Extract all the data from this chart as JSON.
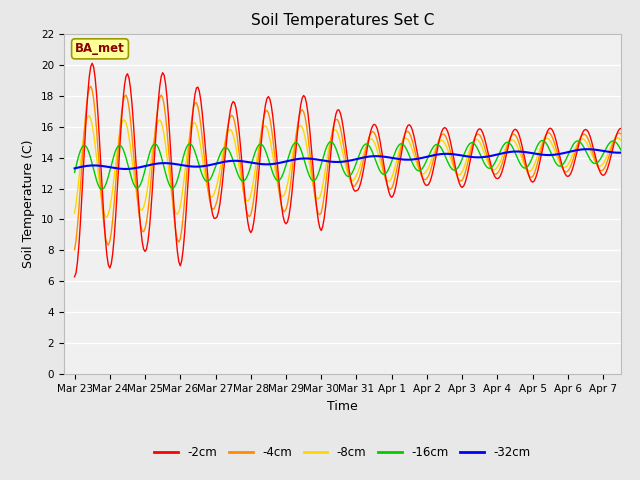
{
  "title": "Soil Temperatures Set C",
  "xlabel": "Time",
  "ylabel": "Soil Temperature (C)",
  "ylim": [
    0,
    22
  ],
  "yticks": [
    0,
    2,
    4,
    6,
    8,
    10,
    12,
    14,
    16,
    18,
    20,
    22
  ],
  "xtick_labels": [
    "Mar 23",
    "Mar 24",
    "Mar 25",
    "Mar 26",
    "Mar 27",
    "Mar 28",
    "Mar 29",
    "Mar 30",
    "Mar 31",
    "Apr 1",
    "Apr 2",
    "Apr 3",
    "Apr 4",
    "Apr 5",
    "Apr 6",
    "Apr 7"
  ],
  "annotation_text": "BA_met",
  "annotation_color": "#8B0000",
  "annotation_bg": "#FFFF99",
  "annotation_border": "#999900",
  "series_colors": {
    "-2cm": "#FF0000",
    "-4cm": "#FF8C00",
    "-8cm": "#FFD700",
    "-16cm": "#00CC00",
    "-32cm": "#0000FF"
  },
  "background_color": "#E8E8E8",
  "plot_bg_color": "#F0F0F0",
  "grid_color": "#FFFFFF",
  "title_fontsize": 11,
  "axis_fontsize": 9,
  "tick_fontsize": 7.5,
  "legend_fontsize": 8.5
}
